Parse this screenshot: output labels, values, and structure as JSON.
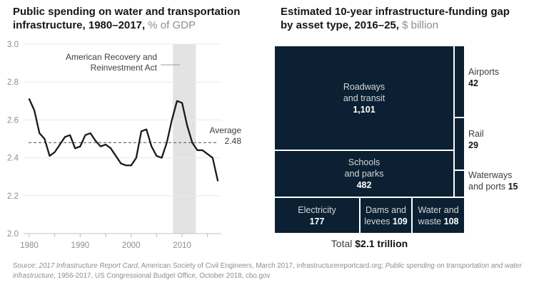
{
  "left_panel": {
    "title_bold": "Public spending on water and transportation infrastructure, 1980–2017,",
    "title_unit": " % of GDP",
    "annotation": {
      "line1": "American Recovery and",
      "line2": "Reinvestment Act"
    },
    "average_label": "Average",
    "average_value": "2.48"
  },
  "right_panel": {
    "title_bold": "Estimated 10-year infrastructure-funding gap by asset type, 2016–25,",
    "title_unit": " $ billion",
    "blocks": {
      "roadways": {
        "line1": "Roadways",
        "line2": "and transit",
        "value": "1,101"
      },
      "schools": {
        "line1": "Schools",
        "line2": "and parks",
        "value": "482"
      },
      "electricity": {
        "line1": "Electricity",
        "value": "177"
      },
      "dams": {
        "line1": "Dams and",
        "line2": "levees ",
        "value": "109"
      },
      "water": {
        "line1": "Water and",
        "line2": "waste ",
        "value": "108"
      }
    },
    "side_labels": {
      "airports": {
        "name": "Airports",
        "value": "42"
      },
      "rail": {
        "name": "Rail",
        "value": "29"
      },
      "waterways": {
        "name": "Waterways",
        "name2": "and ports ",
        "value": "15"
      }
    },
    "total_label": "Total ",
    "total_value": "$2.1 trillion"
  },
  "source": {
    "prefix": "Source: ",
    "italic1": "2017 Infrastructure Report Card",
    "mid": ", American Society of Civil Engineers, March 2017, infrastructurereportcard.org; ",
    "italic2": "Public spending on transportation and water infrastructure",
    "suffix": ", 1956-2017, US Congressional Budget Office, October 2018, cbo.gov"
  },
  "colors": {
    "navy": "#0b2032",
    "band": "#e3e3e3",
    "line": "#1a1a1a",
    "grid": "#eaeaea",
    "axis": "#c6c6c6",
    "tick": "#b9b9b9",
    "tick_label": "#8e8e8e",
    "avg_line": "#7a7a7a",
    "pointer": "#9b9b9b"
  },
  "chart_data": [
    {
      "type": "line",
      "title": "Public spending on water and transportation infrastructure, 1980–2017, % of GDP",
      "x": [
        1980,
        1981,
        1982,
        1983,
        1984,
        1985,
        1986,
        1987,
        1988,
        1989,
        1990,
        1991,
        1992,
        1993,
        1994,
        1995,
        1996,
        1997,
        1998,
        1999,
        2000,
        2001,
        2002,
        2003,
        2004,
        2005,
        2006,
        2007,
        2008,
        2009,
        2010,
        2011,
        2012,
        2013,
        2014,
        2015,
        2016,
        2017
      ],
      "values": [
        2.71,
        2.65,
        2.53,
        2.5,
        2.41,
        2.43,
        2.47,
        2.51,
        2.52,
        2.45,
        2.46,
        2.52,
        2.53,
        2.49,
        2.46,
        2.47,
        2.45,
        2.41,
        2.37,
        2.36,
        2.36,
        2.4,
        2.54,
        2.55,
        2.46,
        2.41,
        2.4,
        2.48,
        2.6,
        2.7,
        2.69,
        2.57,
        2.48,
        2.44,
        2.44,
        2.42,
        2.4,
        2.28
      ],
      "ylim": [
        2.0,
        3.0
      ],
      "y_ticks": [
        3.0,
        2.8,
        2.6,
        2.4,
        2.2,
        2.0
      ],
      "x_tick_labels": [
        1980,
        1990,
        2000,
        2010
      ],
      "x_minor_tick_step": 5,
      "grid": true,
      "average": 2.48,
      "average_label": "Average 2.48",
      "highlight_band": {
        "x_from": 2008.2,
        "x_to": 2012.7,
        "label": "American Recovery and Reinvestment Act"
      }
    },
    {
      "type": "treemap",
      "title": "Estimated 10-year infrastructure-funding gap by asset type, 2016–25, $ billion",
      "items": [
        {
          "label": "Roadways and transit",
          "value": 1101
        },
        {
          "label": "Schools and parks",
          "value": 482
        },
        {
          "label": "Electricity",
          "value": 177
        },
        {
          "label": "Dams and levees",
          "value": 109
        },
        {
          "label": "Water and waste",
          "value": 108
        },
        {
          "label": "Airports",
          "value": 42
        },
        {
          "label": "Rail",
          "value": 29
        },
        {
          "label": "Waterways and ports",
          "value": 15
        }
      ],
      "total": "Total $2.1 trillion"
    }
  ]
}
